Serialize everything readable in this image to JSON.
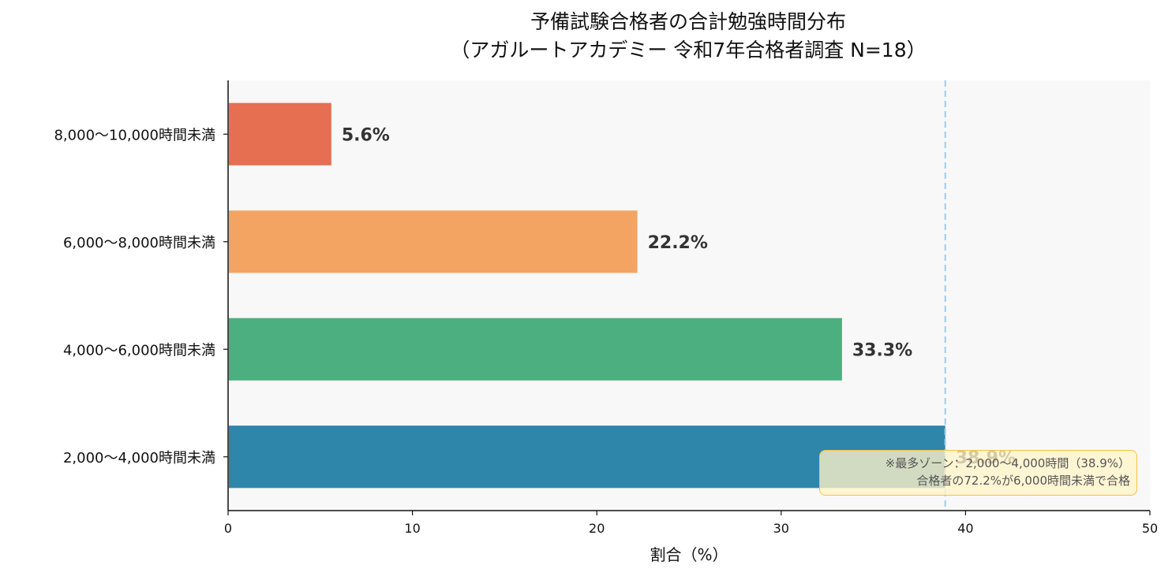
{
  "chart_data": {
    "type": "bar",
    "orientation": "horizontal",
    "title": "予備試験合格者の合計勉強時間分布",
    "subtitle": "（アガルートアカデミー 令和7年合格者調査 N=18）",
    "xlabel": "割合（%）",
    "ylabel": "",
    "xlim": [
      0,
      50
    ],
    "xticks": [
      "0",
      "10",
      "20",
      "30",
      "40",
      "50"
    ],
    "categories": [
      "2,000〜4,000時間未満",
      "4,000〜6,000時間未満",
      "6,000〜8,000時間未満",
      "8,000〜10,000時間未満"
    ],
    "values": [
      38.9,
      33.3,
      22.2,
      5.6
    ],
    "value_labels": [
      "38.9%",
      "33.3%",
      "22.2%",
      "5.6%"
    ],
    "colors": [
      "#2e86ab",
      "#4caf7f",
      "#f4a462",
      "#e76f51"
    ],
    "reference_line": {
      "value": 38.9,
      "color": "#a8cfe6",
      "style": "dashed"
    },
    "annotation": {
      "line1": "※最多ゾーン：2,000〜4,000時間（38.9%）",
      "line2": "合格者の72.2%が6,000時間未満で合格"
    },
    "grid": false,
    "plot_background": "#f8f8f8"
  }
}
